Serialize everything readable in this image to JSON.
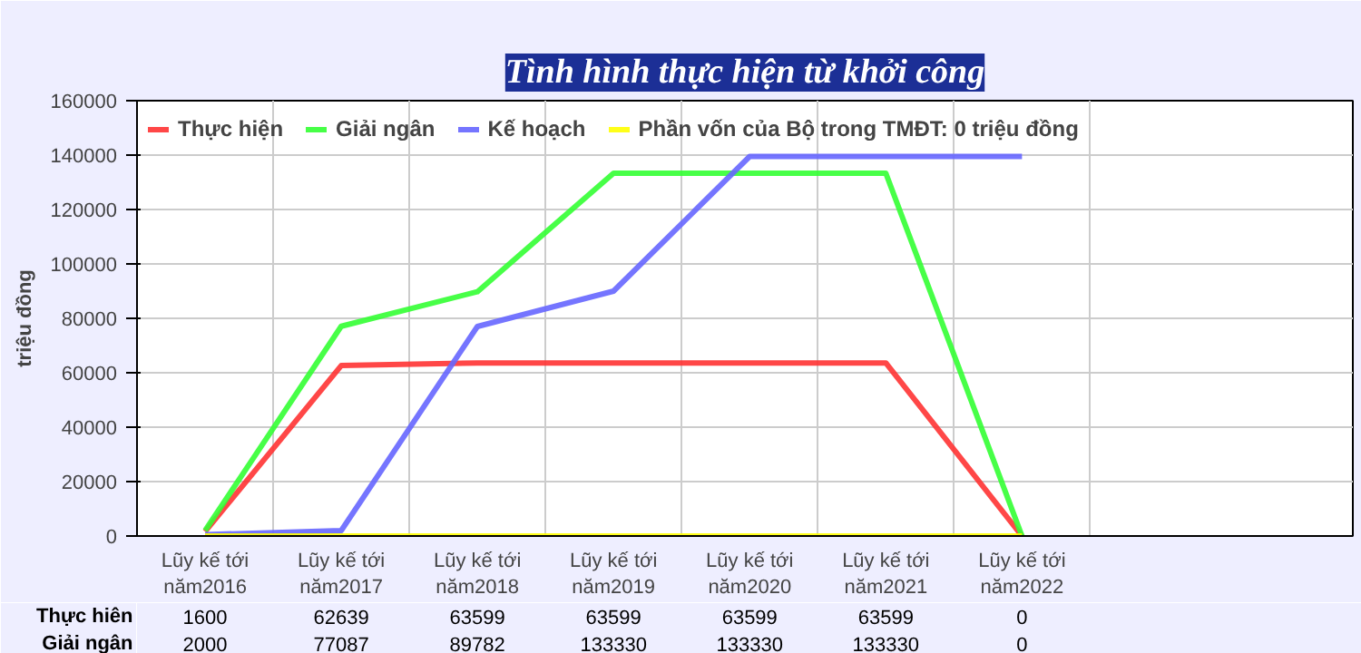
{
  "chart_data": {
    "type": "line",
    "title": "Tình hình thực hiện từ khởi công",
    "ylabel": "triệu đồng",
    "categories": [
      "Lũy kế tới\nnăm2016",
      "Lũy kế tới\nnăm2017",
      "Lũy kế tới\nnăm2018",
      "Lũy kế tới\nnăm2019",
      "Lũy kế tới\nnăm2020",
      "Lũy kế tới\nnăm2021",
      "Lũy kế tới\nnăm2022"
    ],
    "series": [
      {
        "name": "Thực hiện",
        "color": "#ff3333",
        "values": [
          1600,
          62639,
          63599,
          63599,
          63599,
          63599,
          0
        ],
        "value_labels": [
          "1600",
          "62639",
          "63599",
          "63599",
          "63599",
          "63599",
          "0"
        ]
      },
      {
        "name": "Giải ngân",
        "color": "#33ff33",
        "values": [
          2000,
          77087,
          89782,
          133330,
          133330,
          133330,
          0
        ],
        "value_labels": [
          "2000",
          "77087",
          "89782",
          "133330",
          "133330",
          "133330",
          "0"
        ]
      },
      {
        "name": "Kế hoạch",
        "color": "#6666ff",
        "values": [
          500,
          2000,
          77000,
          90000,
          139500,
          139500,
          139500
        ]
      },
      {
        "name": "Phần vốn của Bộ trong TMĐT: 0 triệu đồng",
        "color": "#ffff00",
        "values": [
          0,
          0,
          0,
          0,
          0,
          0,
          0
        ]
      }
    ],
    "annotations": [
      "Thực hiên",
      "Giải ngân"
    ],
    "ylim": [
      0,
      160000
    ],
    "yticks": [
      0,
      20000,
      40000,
      60000,
      80000,
      100000,
      120000,
      140000,
      160000
    ],
    "grid": true,
    "legend": "top left"
  }
}
